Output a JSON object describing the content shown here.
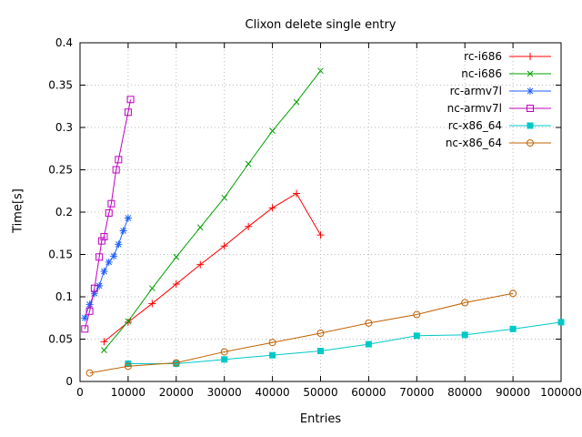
{
  "page": {
    "title": "Clixon delete single entry",
    "xlabel": "Entries",
    "ylabel": "Time[s]"
  },
  "chart_data": {
    "type": "line",
    "title": "Clixon delete single entry",
    "xlabel": "Entries",
    "ylabel": "Time[s]",
    "xlim": [
      0,
      100000
    ],
    "ylim": [
      0,
      0.4
    ],
    "xticks": [
      0,
      10000,
      20000,
      30000,
      40000,
      50000,
      60000,
      70000,
      80000,
      90000,
      100000
    ],
    "xtick_labels": [
      "0",
      "10000",
      "20000",
      "30000",
      "40000",
      "50000",
      "60000",
      "70000",
      "80000",
      "90000",
      "100000"
    ],
    "yticks": [
      0,
      0.05,
      0.1,
      0.15,
      0.2,
      0.25,
      0.3,
      0.35,
      0.4
    ],
    "ytick_labels": [
      "0",
      "0.05",
      "0.1",
      "0.15",
      "0.2",
      "0.25",
      "0.3",
      "0.35",
      "0.4"
    ],
    "grid": true,
    "grid_color": "#b9b9b9",
    "axis_color": "#000000",
    "legend_position": "top-right",
    "series": [
      {
        "name": "rc-i686",
        "color": "#ff0000",
        "marker": "plus",
        "points": [
          [
            5000,
            0.047
          ],
          [
            10000,
            0.07
          ],
          [
            15000,
            0.092
          ],
          [
            20000,
            0.115
          ],
          [
            25000,
            0.138
          ],
          [
            30000,
            0.16
          ],
          [
            35000,
            0.183
          ],
          [
            40000,
            0.205
          ],
          [
            45000,
            0.222
          ],
          [
            50000,
            0.173
          ]
        ]
      },
      {
        "name": "nc-i686",
        "color": "#00a000",
        "marker": "cross",
        "points": [
          [
            5000,
            0.037
          ],
          [
            10000,
            0.071
          ],
          [
            15000,
            0.11
          ],
          [
            20000,
            0.147
          ],
          [
            25000,
            0.182
          ],
          [
            30000,
            0.217
          ],
          [
            35000,
            0.257
          ],
          [
            40000,
            0.296
          ],
          [
            45000,
            0.33
          ],
          [
            50000,
            0.367
          ]
        ]
      },
      {
        "name": "rc-armv7l",
        "color": "#2060ff",
        "marker": "asterisk",
        "points": [
          [
            1000,
            0.075
          ],
          [
            2000,
            0.091
          ],
          [
            3000,
            0.104
          ],
          [
            4000,
            0.113
          ],
          [
            5000,
            0.13
          ],
          [
            6000,
            0.141
          ],
          [
            7000,
            0.148
          ],
          [
            8000,
            0.162
          ],
          [
            9000,
            0.178
          ],
          [
            10000,
            0.193
          ]
        ]
      },
      {
        "name": "nc-armv7l",
        "color": "#bf00bf",
        "marker": "square-open",
        "points": [
          [
            1000,
            0.062
          ],
          [
            2000,
            0.083
          ],
          [
            3000,
            0.11
          ],
          [
            4000,
            0.147
          ],
          [
            4500,
            0.166
          ],
          [
            5000,
            0.171
          ],
          [
            6000,
            0.199
          ],
          [
            6500,
            0.21
          ],
          [
            7500,
            0.25
          ],
          [
            8000,
            0.262
          ],
          [
            10000,
            0.318
          ],
          [
            10500,
            0.333
          ]
        ]
      },
      {
        "name": "rc-x86_64",
        "color": "#00c8c8",
        "marker": "square-filled",
        "points": [
          [
            10000,
            0.021
          ],
          [
            20000,
            0.021
          ],
          [
            30000,
            0.026
          ],
          [
            40000,
            0.031
          ],
          [
            50000,
            0.036
          ],
          [
            60000,
            0.044
          ],
          [
            70000,
            0.054
          ],
          [
            80000,
            0.055
          ],
          [
            90000,
            0.062
          ],
          [
            100000,
            0.07
          ]
        ]
      },
      {
        "name": "nc-x86_64",
        "color": "#c06000",
        "marker": "circle-open",
        "points": [
          [
            2000,
            0.01
          ],
          [
            10000,
            0.018
          ],
          [
            20000,
            0.022
          ],
          [
            30000,
            0.035
          ],
          [
            40000,
            0.046
          ],
          [
            50000,
            0.057
          ],
          [
            60000,
            0.069
          ],
          [
            70000,
            0.079
          ],
          [
            80000,
            0.093
          ],
          [
            90000,
            0.104
          ]
        ]
      }
    ]
  }
}
